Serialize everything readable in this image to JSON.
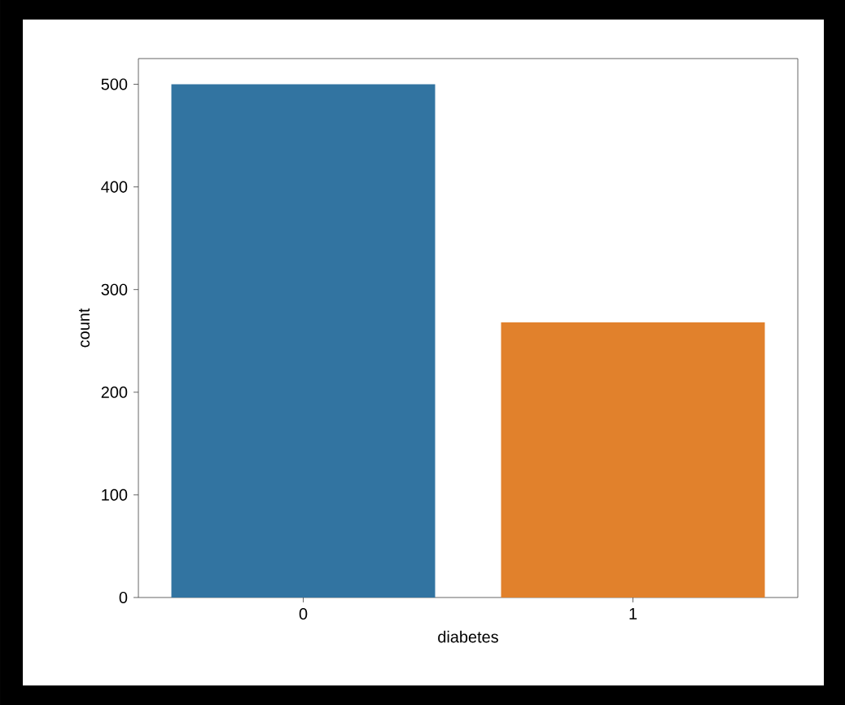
{
  "chart_data": {
    "type": "bar",
    "xlabel": "diabetes",
    "ylabel": "count",
    "categories": [
      "0",
      "1"
    ],
    "values": [
      500,
      268
    ],
    "colors": [
      "#3274a1",
      "#e1812c"
    ],
    "ylim": [
      0,
      525
    ],
    "yticks": [
      0,
      100,
      200,
      300,
      400,
      500
    ],
    "grid": false
  }
}
